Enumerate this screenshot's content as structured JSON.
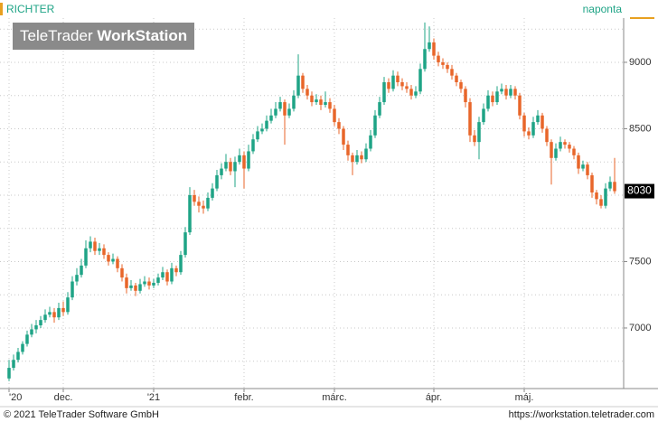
{
  "chart_data": {
    "type": "candlestick",
    "title": "RICHTER",
    "period": "naponta",
    "logo": [
      "TeleTrader",
      "WorkStation"
    ],
    "footer_left": "© 2021 TeleTrader Software GmbH",
    "footer_right": "https://workstation.teletrader.com",
    "up_color": "#1fa486",
    "down_color": "#e8662a",
    "ylim": [
      6544,
      9333
    ],
    "yticks": [
      7000,
      7500,
      8500,
      9000
    ],
    "minor_yticks": [
      6750,
      7250,
      7750,
      8000,
      8250,
      8750,
      9250
    ],
    "xlim": [
      -2,
      136
    ],
    "xticks": [
      {
        "value": 0,
        "label": "'20"
      },
      {
        "value": 12,
        "label": "dec."
      },
      {
        "value": 32,
        "label": "'21"
      },
      {
        "value": 52,
        "label": "febr."
      },
      {
        "value": 72,
        "label": "márc."
      },
      {
        "value": 94,
        "label": "ápr."
      },
      {
        "value": 114,
        "label": "máj."
      }
    ],
    "last_price": 8030,
    "grid": true,
    "series": [
      {
        "name": "RICHTER",
        "ohlc": [
          [
            6620,
            6760,
            6600,
            6700
          ],
          [
            6700,
            6800,
            6680,
            6760
          ],
          [
            6760,
            6850,
            6740,
            6820
          ],
          [
            6820,
            6900,
            6800,
            6880
          ],
          [
            6880,
            6980,
            6860,
            6950
          ],
          [
            6950,
            7030,
            6930,
            6990
          ],
          [
            6990,
            7060,
            6960,
            7020
          ],
          [
            7020,
            7090,
            7000,
            7060
          ],
          [
            7060,
            7140,
            7040,
            7100
          ],
          [
            7100,
            7160,
            7080,
            7120
          ],
          [
            7120,
            7150,
            7040,
            7080
          ],
          [
            7080,
            7190,
            7060,
            7150
          ],
          [
            7150,
            7200,
            7090,
            7120
          ],
          [
            7120,
            7270,
            7100,
            7230
          ],
          [
            7230,
            7390,
            7210,
            7350
          ],
          [
            7350,
            7450,
            7320,
            7400
          ],
          [
            7400,
            7520,
            7380,
            7470
          ],
          [
            7470,
            7660,
            7450,
            7600
          ],
          [
            7600,
            7690,
            7570,
            7650
          ],
          [
            7650,
            7680,
            7550,
            7580
          ],
          [
            7580,
            7640,
            7550,
            7600
          ],
          [
            7600,
            7630,
            7520,
            7550
          ],
          [
            7550,
            7570,
            7470,
            7500
          ],
          [
            7500,
            7560,
            7480,
            7520
          ],
          [
            7520,
            7540,
            7420,
            7450
          ],
          [
            7450,
            7480,
            7350,
            7380
          ],
          [
            7380,
            7410,
            7260,
            7300
          ],
          [
            7300,
            7360,
            7280,
            7320
          ],
          [
            7320,
            7340,
            7240,
            7280
          ],
          [
            7280,
            7370,
            7260,
            7330
          ],
          [
            7330,
            7390,
            7310,
            7350
          ],
          [
            7350,
            7380,
            7290,
            7320
          ],
          [
            7320,
            7370,
            7300,
            7340
          ],
          [
            7340,
            7410,
            7320,
            7380
          ],
          [
            7380,
            7460,
            7360,
            7420
          ],
          [
            7420,
            7440,
            7320,
            7350
          ],
          [
            7350,
            7490,
            7330,
            7450
          ],
          [
            7450,
            7470,
            7390,
            7420
          ],
          [
            7420,
            7580,
            7400,
            7550
          ],
          [
            7550,
            7760,
            7530,
            7720
          ],
          [
            7720,
            8060,
            7700,
            8000
          ],
          [
            8000,
            8040,
            7920,
            7950
          ],
          [
            7950,
            7990,
            7870,
            7920
          ],
          [
            7920,
            7960,
            7860,
            7900
          ],
          [
            7900,
            8020,
            7880,
            7980
          ],
          [
            7980,
            8090,
            7960,
            8050
          ],
          [
            8050,
            8190,
            8030,
            8150
          ],
          [
            8150,
            8240,
            8120,
            8200
          ],
          [
            8200,
            8310,
            8180,
            8250
          ],
          [
            8250,
            8280,
            8150,
            8180
          ],
          [
            8180,
            8290,
            8060,
            8250
          ],
          [
            8250,
            8350,
            8230,
            8300
          ],
          [
            8300,
            8330,
            8050,
            8200
          ],
          [
            8200,
            8380,
            8180,
            8330
          ],
          [
            8330,
            8460,
            8310,
            8420
          ],
          [
            8420,
            8520,
            8400,
            8480
          ],
          [
            8480,
            8540,
            8460,
            8500
          ],
          [
            8500,
            8600,
            8480,
            8560
          ],
          [
            8560,
            8650,
            8540,
            8600
          ],
          [
            8600,
            8700,
            8580,
            8650
          ],
          [
            8650,
            8740,
            8630,
            8700
          ],
          [
            8700,
            8720,
            8380,
            8600
          ],
          [
            8600,
            8690,
            8580,
            8650
          ],
          [
            8650,
            8790,
            8630,
            8750
          ],
          [
            8750,
            9060,
            8730,
            8900
          ],
          [
            8900,
            8920,
            8770,
            8800
          ],
          [
            8800,
            8830,
            8720,
            8750
          ],
          [
            8750,
            8780,
            8670,
            8700
          ],
          [
            8700,
            8760,
            8680,
            8720
          ],
          [
            8720,
            8750,
            8640,
            8680
          ],
          [
            8680,
            8780,
            8660,
            8700
          ],
          [
            8700,
            8730,
            8620,
            8650
          ],
          [
            8650,
            8680,
            8520,
            8550
          ],
          [
            8550,
            8580,
            8460,
            8500
          ],
          [
            8500,
            8520,
            8340,
            8380
          ],
          [
            8380,
            8410,
            8260,
            8300
          ],
          [
            8300,
            8320,
            8150,
            8250
          ],
          [
            8250,
            8340,
            8230,
            8300
          ],
          [
            8300,
            8330,
            8240,
            8270
          ],
          [
            8270,
            8390,
            8250,
            8350
          ],
          [
            8350,
            8490,
            8330,
            8450
          ],
          [
            8450,
            8640,
            8430,
            8600
          ],
          [
            8600,
            8740,
            8580,
            8700
          ],
          [
            8700,
            8890,
            8680,
            8850
          ],
          [
            8850,
            8880,
            8770,
            8800
          ],
          [
            8800,
            8940,
            8780,
            8900
          ],
          [
            8900,
            8930,
            8820,
            8850
          ],
          [
            8850,
            8880,
            8790,
            8820
          ],
          [
            8820,
            8850,
            8770,
            8800
          ],
          [
            8800,
            8830,
            8720,
            8750
          ],
          [
            8750,
            8820,
            8730,
            8780
          ],
          [
            8780,
            8990,
            8760,
            8950
          ],
          [
            8950,
            9300,
            8930,
            9100
          ],
          [
            9100,
            9270,
            9080,
            9150
          ],
          [
            9150,
            9180,
            9020,
            9050
          ],
          [
            9050,
            9080,
            8970,
            9000
          ],
          [
            9000,
            9030,
            8950,
            8980
          ],
          [
            8980,
            9000,
            8920,
            8950
          ],
          [
            8950,
            8980,
            8870,
            8900
          ],
          [
            8900,
            8920,
            8820,
            8850
          ],
          [
            8850,
            8870,
            8770,
            8800
          ],
          [
            8800,
            8820,
            8660,
            8700
          ],
          [
            8700,
            8730,
            8400,
            8450
          ],
          [
            8450,
            8490,
            8370,
            8400
          ],
          [
            8400,
            8590,
            8270,
            8550
          ],
          [
            8550,
            8690,
            8530,
            8650
          ],
          [
            8650,
            8790,
            8630,
            8750
          ],
          [
            8750,
            8780,
            8670,
            8700
          ],
          [
            8700,
            8820,
            8680,
            8780
          ],
          [
            8780,
            8840,
            8760,
            8800
          ],
          [
            8800,
            8830,
            8720,
            8750
          ],
          [
            8750,
            8830,
            8730,
            8800
          ],
          [
            8800,
            8820,
            8720,
            8750
          ],
          [
            8750,
            8770,
            8570,
            8600
          ],
          [
            8600,
            8620,
            8440,
            8480
          ],
          [
            8480,
            8510,
            8420,
            8450
          ],
          [
            8450,
            8590,
            8430,
            8550
          ],
          [
            8550,
            8640,
            8530,
            8600
          ],
          [
            8600,
            8620,
            8470,
            8500
          ],
          [
            8500,
            8520,
            8370,
            8400
          ],
          [
            8400,
            8420,
            8080,
            8280
          ],
          [
            8280,
            8390,
            8260,
            8350
          ],
          [
            8350,
            8440,
            8330,
            8400
          ],
          [
            8400,
            8420,
            8350,
            8380
          ],
          [
            8380,
            8400,
            8320,
            8350
          ],
          [
            8350,
            8370,
            8270,
            8300
          ],
          [
            8300,
            8320,
            8160,
            8200
          ],
          [
            8200,
            8260,
            8180,
            8230
          ],
          [
            8230,
            8250,
            8120,
            8150
          ],
          [
            8150,
            8170,
            7980,
            8020
          ],
          [
            8020,
            8040,
            7930,
            7970
          ],
          [
            7970,
            8000,
            7900,
            7920
          ],
          [
            7920,
            8090,
            7900,
            8050
          ],
          [
            8050,
            8140,
            8030,
            8100
          ],
          [
            8100,
            8280,
            8010,
            8030
          ]
        ]
      }
    ]
  }
}
